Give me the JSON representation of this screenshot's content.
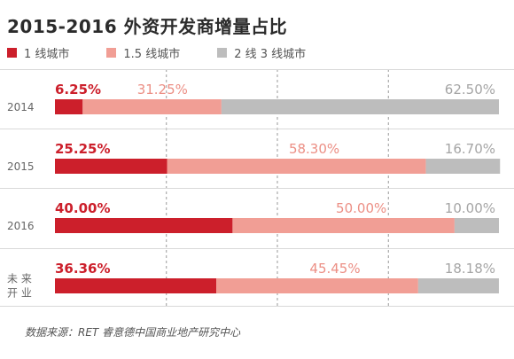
{
  "title": "2015-2016 外资开发商增量占比",
  "legend": [
    {
      "label": "1 线城市",
      "color": "#cc1f2b"
    },
    {
      "label": "1.5 线城市",
      "color": "#f19e95"
    },
    {
      "label": "2 线 3 线城市",
      "color": "#bdbdbd"
    }
  ],
  "source": "数据来源：RET 睿意德中国商业地产研究中心",
  "chart_data": {
    "type": "bar",
    "orientation": "horizontal",
    "stacked": true,
    "categories": [
      "2014",
      "2015",
      "2016",
      "未来开业"
    ],
    "category_lines": [
      [
        "2014"
      ],
      [
        "2015"
      ],
      [
        "2016"
      ],
      [
        "未 来",
        "开 业"
      ]
    ],
    "series": [
      {
        "name": "1 线城市",
        "color": "#cc1f2b",
        "label_color": "#cc1f2b",
        "values": [
          6.25,
          25.25,
          40.0,
          36.36
        ],
        "labels": [
          "6.25%",
          "25.25%",
          "40.00%",
          "36.36%"
        ]
      },
      {
        "name": "1.5 线城市",
        "color": "#f19e95",
        "label_color": "#ec8f85",
        "values": [
          31.25,
          58.3,
          50.0,
          45.45
        ],
        "labels": [
          "31.25%",
          "58.30%",
          "50.00%",
          "45.45%"
        ]
      },
      {
        "name": "2 线 3 线城市",
        "color": "#bdbdbd",
        "label_color": "#a5a5a5",
        "values": [
          62.5,
          16.7,
          10.0,
          18.18
        ],
        "labels": [
          "62.50%",
          "16.70%",
          "10.00%",
          "18.18%"
        ]
      }
    ],
    "xlim": [
      0,
      100
    ],
    "grid": "dashed vertical",
    "legend_position": "top-left"
  }
}
